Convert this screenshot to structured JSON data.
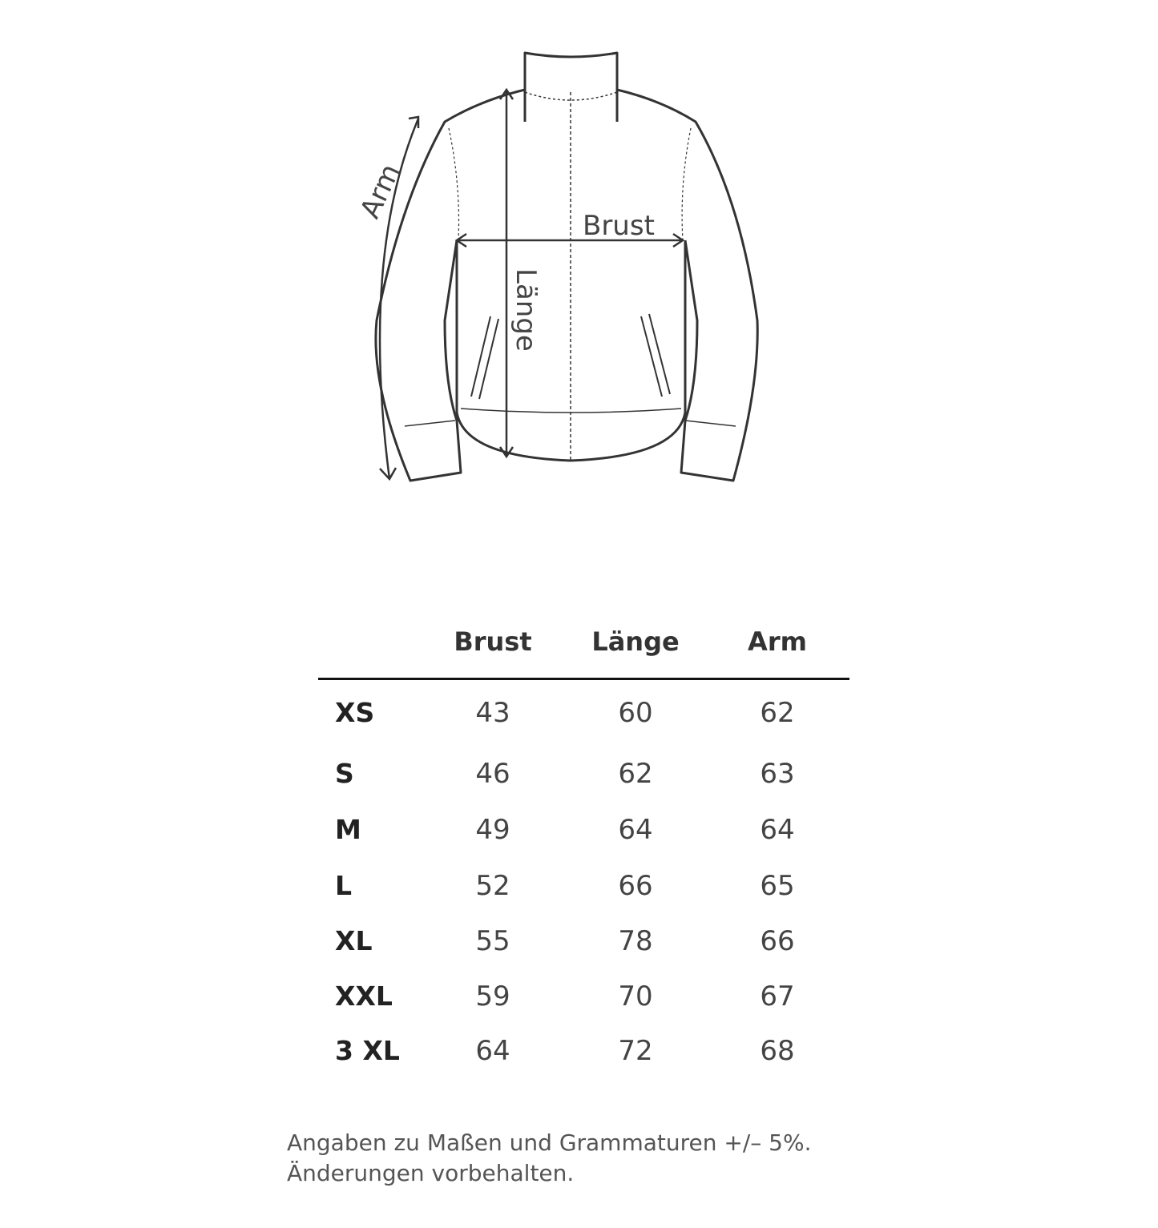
{
  "diagram": {
    "labels": {
      "arm": "Arm",
      "brust": "Brust",
      "laenge": "Länge"
    }
  },
  "table": {
    "headers": [
      "",
      "Brust",
      "Länge",
      "Arm"
    ],
    "rows": [
      {
        "size": "XS",
        "brust": "43",
        "laenge": "60",
        "arm": "62"
      },
      {
        "size": "S",
        "brust": "46",
        "laenge": "62",
        "arm": "63"
      },
      {
        "size": "M",
        "brust": "49",
        "laenge": "64",
        "arm": "64"
      },
      {
        "size": "L",
        "brust": "52",
        "laenge": "66",
        "arm": "65"
      },
      {
        "size": "XL",
        "brust": "55",
        "laenge": "78",
        "arm": "66"
      },
      {
        "size": "XXL",
        "brust": "59",
        "laenge": "70",
        "arm": "67"
      },
      {
        "size": "3 XL",
        "brust": "64",
        "laenge": "72",
        "arm": "68"
      }
    ]
  },
  "footer": {
    "line1": "Angaben zu Maßen und Grammaturen +/– 5%.",
    "line2": "Änderungen vorbehalten."
  }
}
